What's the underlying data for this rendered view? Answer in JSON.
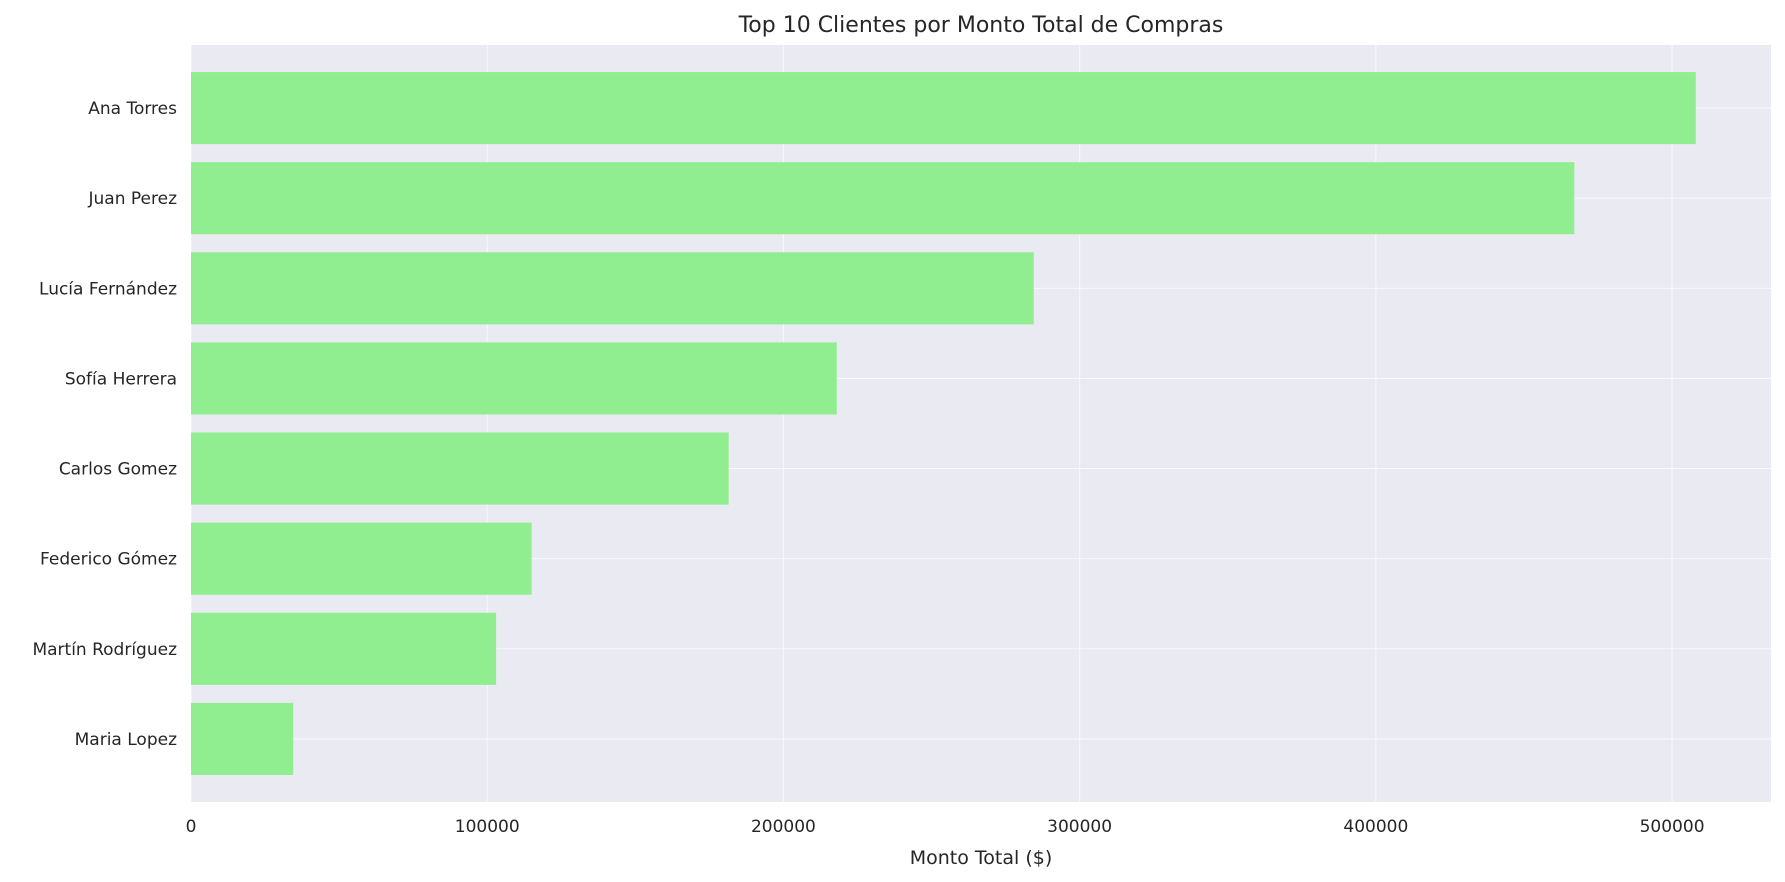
{
  "chart_data": {
    "type": "bar",
    "orientation": "horizontal",
    "title": "Top 10 Clientes por Monto Total de Compras",
    "xlabel": "Monto Total ($)",
    "ylabel": "",
    "categories": [
      "Ana Torres",
      "Juan Perez",
      "Lucía Fernández",
      "Sofía Herrera",
      "Carlos Gomez",
      "Federico Gómez",
      "Martín Rodríguez",
      "Maria Lopez"
    ],
    "values": [
      508000,
      467000,
      284500,
      218000,
      181500,
      115000,
      103000,
      34500
    ],
    "xlim": [
      0,
      533400
    ],
    "xticks": [
      0,
      100000,
      200000,
      300000,
      400000,
      500000
    ],
    "xtick_labels": [
      "0",
      "100000",
      "200000",
      "300000",
      "400000",
      "500000"
    ],
    "grid": true,
    "legend": "none",
    "colors": {
      "bar": "#90ee90",
      "plot_background": "#eaeaf2",
      "grid": "#ffffff",
      "text": "#262626"
    }
  }
}
